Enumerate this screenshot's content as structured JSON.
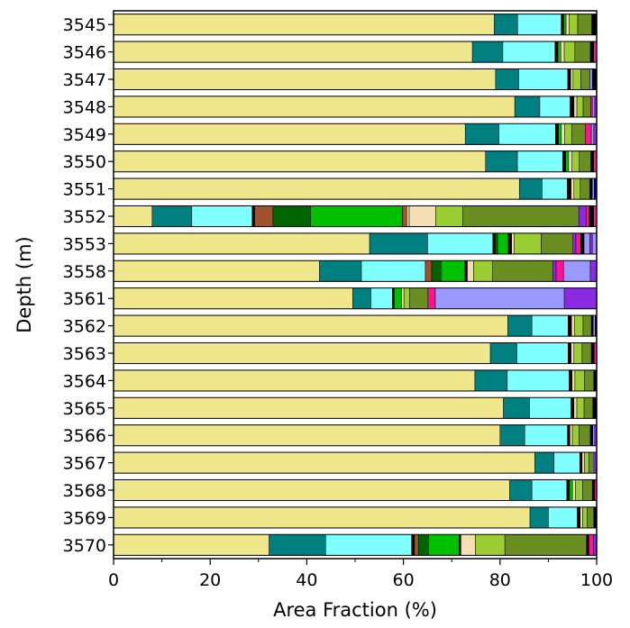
{
  "chart_data": {
    "type": "bar",
    "orientation": "horizontal",
    "stacked": true,
    "xlabel": "Area Fraction (%)",
    "ylabel": "Depth (m)",
    "xlim": [
      0,
      100
    ],
    "x_ticks": [
      0,
      20,
      40,
      60,
      80,
      100
    ],
    "grid": false,
    "legend": "none",
    "categories": [
      "3545",
      "3546",
      "3547",
      "3548",
      "3549",
      "3550",
      "3551",
      "3552",
      "3553",
      "3558",
      "3561",
      "3562",
      "3563",
      "3564",
      "3565",
      "3566",
      "3567",
      "3568",
      "3569",
      "3570"
    ],
    "component_colors": [
      "#F0E68C",
      "#008080",
      "#7FFFFF",
      "#000000",
      "#A0522D",
      "#006400",
      "#00C000",
      "#F5DEB3",
      "#9ACD32",
      "#6B8E23",
      "#FF1493",
      "#9999FF",
      "#8A2BE2",
      "#000080"
    ],
    "segments": [
      [
        [
          78.5,
          "#F0E68C"
        ],
        [
          4.8,
          "#008080"
        ],
        [
          9.0,
          "#7FFFFF"
        ],
        [
          0.5,
          "#000000"
        ],
        [
          0.5,
          "#00C000"
        ],
        [
          0.6,
          "#F5DEB3"
        ],
        [
          1.8,
          "#9ACD32"
        ],
        [
          2.9,
          "#6B8E23"
        ],
        [
          1.0,
          "#000000"
        ]
      ],
      [
        [
          74.2,
          "#F0E68C"
        ],
        [
          6.3,
          "#008080"
        ],
        [
          10.8,
          "#7FFFFF"
        ],
        [
          0.6,
          "#000000"
        ],
        [
          0.6,
          "#00C000"
        ],
        [
          0.7,
          "#F5DEB3"
        ],
        [
          2.2,
          "#9ACD32"
        ],
        [
          3.2,
          "#6B8E23"
        ],
        [
          0.7,
          "#000000"
        ],
        [
          0.6,
          "#FF1493"
        ]
      ],
      [
        [
          79.4,
          "#F0E68C"
        ],
        [
          4.8,
          "#008080"
        ],
        [
          10.2,
          "#7FFFFF"
        ],
        [
          0.6,
          "#000000"
        ],
        [
          0.5,
          "#F5DEB3"
        ],
        [
          1.6,
          "#9ACD32"
        ],
        [
          1.9,
          "#6B8E23"
        ],
        [
          0.5,
          "#9999FF"
        ],
        [
          0.9,
          "#000000"
        ]
      ],
      [
        [
          83.3,
          "#F0E68C"
        ],
        [
          5.2,
          "#008080"
        ],
        [
          6.3,
          "#7FFFFF"
        ],
        [
          0.8,
          "#000000"
        ],
        [
          0.6,
          "#F5DEB3"
        ],
        [
          1.3,
          "#9ACD32"
        ],
        [
          1.6,
          "#6B8E23"
        ],
        [
          0.3,
          "#FF1493"
        ],
        [
          0.5,
          "#9999FF"
        ],
        [
          0.4,
          "#8A2BE2"
        ]
      ],
      [
        [
          72.8,
          "#F0E68C"
        ],
        [
          7.0,
          "#008080"
        ],
        [
          11.7,
          "#7FFFFF"
        ],
        [
          0.6,
          "#000000"
        ],
        [
          0.6,
          "#00C000"
        ],
        [
          0.7,
          "#F5DEB3"
        ],
        [
          1.5,
          "#9ACD32"
        ],
        [
          2.8,
          "#6B8E23"
        ],
        [
          1.2,
          "#FF1493"
        ],
        [
          0.5,
          "#9999FF"
        ],
        [
          0.6,
          "#8A2BE2"
        ]
      ],
      [
        [
          77.0,
          "#F0E68C"
        ],
        [
          6.6,
          "#008080"
        ],
        [
          9.4,
          "#7FFFFF"
        ],
        [
          0.6,
          "#000000"
        ],
        [
          0.6,
          "#00C000"
        ],
        [
          0.7,
          "#F5DEB3"
        ],
        [
          1.5,
          "#9ACD32"
        ],
        [
          2.4,
          "#6B8E23"
        ],
        [
          0.6,
          "#000000"
        ],
        [
          0.6,
          "#FF1493"
        ]
      ],
      [
        [
          84.0,
          "#F0E68C"
        ],
        [
          4.7,
          "#008080"
        ],
        [
          5.2,
          "#7FFFFF"
        ],
        [
          0.8,
          "#000000"
        ],
        [
          0.6,
          "#F5DEB3"
        ],
        [
          1.3,
          "#9ACD32"
        ],
        [
          2.0,
          "#6B8E23"
        ],
        [
          0.5,
          "#000000"
        ],
        [
          0.4,
          "#9999FF"
        ],
        [
          0.5,
          "#000080"
        ]
      ],
      [
        [
          8.0,
          "#F0E68C"
        ],
        [
          8.2,
          "#008080"
        ],
        [
          12.5,
          "#7FFFFF"
        ],
        [
          0.5,
          "#000000"
        ],
        [
          3.8,
          "#A0522D"
        ],
        [
          7.8,
          "#006400"
        ],
        [
          19.0,
          "#00C000"
        ],
        [
          0.9,
          "#A0522D"
        ],
        [
          0.5,
          "#F5DEB3"
        ],
        [
          5.5,
          "#F5DEB3"
        ],
        [
          5.6,
          "#9ACD32"
        ],
        [
          24.0,
          "#6B8E23"
        ],
        [
          1.5,
          "#8A2BE2"
        ],
        [
          0.7,
          "#FF1493"
        ],
        [
          0.9,
          "#000000"
        ],
        [
          0.6,
          "#FF1493"
        ]
      ],
      [
        [
          53.0,
          "#F0E68C"
        ],
        [
          12.0,
          "#008080"
        ],
        [
          13.5,
          "#7FFFFF"
        ],
        [
          0.5,
          "#000000"
        ],
        [
          0.5,
          "#006400"
        ],
        [
          2.2,
          "#00C000"
        ],
        [
          0.7,
          "#000000"
        ],
        [
          0.5,
          "#F5DEB3"
        ],
        [
          5.6,
          "#9ACD32"
        ],
        [
          6.6,
          "#6B8E23"
        ],
        [
          0.6,
          "#8A2BE2"
        ],
        [
          1.0,
          "#FF1493"
        ],
        [
          0.7,
          "#000000"
        ],
        [
          1.2,
          "#9999FF"
        ],
        [
          0.5,
          "#8A2BE2"
        ],
        [
          0.9,
          "#9999FF"
        ]
      ],
      [
        [
          42.2,
          "#F0E68C"
        ],
        [
          8.6,
          "#008080"
        ],
        [
          13.1,
          "#7FFFFF"
        ],
        [
          1.3,
          "#A0522D"
        ],
        [
          2.0,
          "#006400"
        ],
        [
          4.8,
          "#00C000"
        ],
        [
          0.5,
          "#000000"
        ],
        [
          1.3,
          "#F5DEB3"
        ],
        [
          3.9,
          "#9ACD32"
        ],
        [
          12.3,
          "#6B8E23"
        ],
        [
          0.7,
          "#8A2BE2"
        ],
        [
          1.5,
          "#FF1493"
        ],
        [
          5.5,
          "#9999FF"
        ],
        [
          1.3,
          "#8A2BE2"
        ]
      ],
      [
        [
          49.5,
          "#F0E68C"
        ],
        [
          3.8,
          "#008080"
        ],
        [
          4.4,
          "#7FFFFF"
        ],
        [
          0.4,
          "#000000"
        ],
        [
          1.5,
          "#00C000"
        ],
        [
          0.5,
          "#F5DEB3"
        ],
        [
          1.2,
          "#9ACD32"
        ],
        [
          3.8,
          "#6B8E23"
        ],
        [
          1.5,
          "#FF1493"
        ],
        [
          26.7,
          "#9999FF"
        ],
        [
          6.7,
          "#8A2BE2"
        ]
      ],
      [
        [
          81.6,
          "#F0E68C"
        ],
        [
          5.0,
          "#008080"
        ],
        [
          7.5,
          "#7FFFFF"
        ],
        [
          0.7,
          "#000000"
        ],
        [
          0.6,
          "#F5DEB3"
        ],
        [
          1.8,
          "#9ACD32"
        ],
        [
          1.7,
          "#6B8E23"
        ],
        [
          0.4,
          "#000000"
        ],
        [
          0.4,
          "#9999FF"
        ],
        [
          0.3,
          "#000080"
        ]
      ],
      [
        [
          78.0,
          "#F0E68C"
        ],
        [
          5.5,
          "#008080"
        ],
        [
          10.6,
          "#7FFFFF"
        ],
        [
          0.6,
          "#000000"
        ],
        [
          0.6,
          "#F5DEB3"
        ],
        [
          1.7,
          "#9ACD32"
        ],
        [
          1.9,
          "#6B8E23"
        ],
        [
          0.6,
          "#000000"
        ],
        [
          0.5,
          "#FF1493"
        ]
      ],
      [
        [
          74.8,
          "#F0E68C"
        ],
        [
          6.7,
          "#008080"
        ],
        [
          12.8,
          "#7FFFFF"
        ],
        [
          0.6,
          "#000000"
        ],
        [
          0.6,
          "#F5DEB3"
        ],
        [
          2.0,
          "#9ACD32"
        ],
        [
          1.9,
          "#6B8E23"
        ],
        [
          0.6,
          "#000000"
        ]
      ],
      [
        [
          80.7,
          "#F0E68C"
        ],
        [
          5.4,
          "#008080"
        ],
        [
          8.6,
          "#7FFFFF"
        ],
        [
          0.6,
          "#000000"
        ],
        [
          0.6,
          "#F5DEB3"
        ],
        [
          1.5,
          "#9ACD32"
        ],
        [
          1.8,
          "#6B8E23"
        ],
        [
          0.8,
          "#000000"
        ]
      ],
      [
        [
          79.6,
          "#F0E68C"
        ],
        [
          5.1,
          "#008080"
        ],
        [
          8.8,
          "#7FFFFF"
        ],
        [
          0.5,
          "#000000"
        ],
        [
          0.5,
          "#F5DEB3"
        ],
        [
          1.4,
          "#9ACD32"
        ],
        [
          2.3,
          "#6B8E23"
        ],
        [
          0.5,
          "#000000"
        ],
        [
          0.4,
          "#9999FF"
        ],
        [
          0.4,
          "#8A2BE2"
        ]
      ],
      [
        [
          87.1,
          "#F0E68C"
        ],
        [
          4.0,
          "#008080"
        ],
        [
          5.3,
          "#7FFFFF"
        ],
        [
          0.5,
          "#000000"
        ],
        [
          0.5,
          "#F5DEB3"
        ],
        [
          0.9,
          "#9ACD32"
        ],
        [
          0.9,
          "#6B8E23"
        ],
        [
          0.3,
          "#9999FF"
        ],
        [
          0.4,
          "#8A2BE2"
        ]
      ],
      [
        [
          82.0,
          "#F0E68C"
        ],
        [
          4.6,
          "#008080"
        ],
        [
          7.2,
          "#7FFFFF"
        ],
        [
          0.6,
          "#000000"
        ],
        [
          0.6,
          "#00C000"
        ],
        [
          0.6,
          "#F5DEB3"
        ],
        [
          1.5,
          "#9ACD32"
        ],
        [
          2.0,
          "#6B8E23"
        ],
        [
          0.5,
          "#000000"
        ],
        [
          0.4,
          "#FF1493"
        ]
      ],
      [
        [
          86.2,
          "#F0E68C"
        ],
        [
          3.8,
          "#008080"
        ],
        [
          6.0,
          "#7FFFFF"
        ],
        [
          0.6,
          "#000000"
        ],
        [
          0.5,
          "#F5DEB3"
        ],
        [
          0.9,
          "#9ACD32"
        ],
        [
          1.4,
          "#6B8E23"
        ],
        [
          0.6,
          "#000000"
        ]
      ],
      [
        [
          32.2,
          "#F0E68C"
        ],
        [
          11.7,
          "#008080"
        ],
        [
          17.8,
          "#7FFFFF"
        ],
        [
          0.6,
          "#000000"
        ],
        [
          0.8,
          "#A0522D"
        ],
        [
          2.1,
          "#006400"
        ],
        [
          6.3,
          "#00C000"
        ],
        [
          0.4,
          "#000000"
        ],
        [
          3.0,
          "#F5DEB3"
        ],
        [
          6.1,
          "#9ACD32"
        ],
        [
          16.9,
          "#6B8E23"
        ],
        [
          0.5,
          "#000000"
        ],
        [
          0.9,
          "#FF1493"
        ],
        [
          0.7,
          "#8A2BE2"
        ]
      ]
    ]
  }
}
